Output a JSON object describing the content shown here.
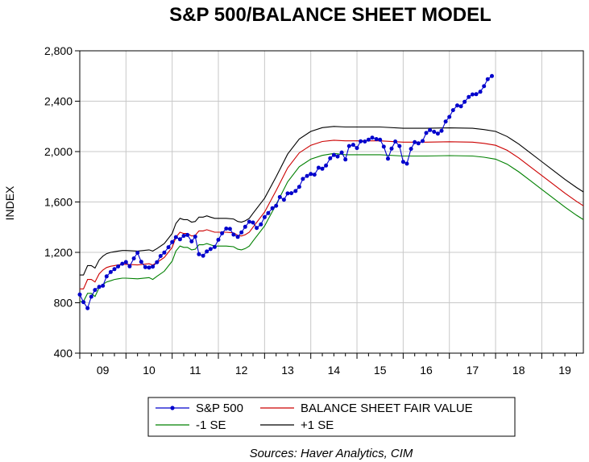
{
  "chart_data": {
    "type": "line",
    "title": "S&P 500/BALANCE SHEET MODEL",
    "ylabel": "INDEX",
    "xlabel": "",
    "source": "Sources:  Haver Analytics, CIM",
    "ylim": [
      400,
      2800
    ],
    "yticks": [
      400,
      800,
      1200,
      1600,
      2000,
      2400,
      2800
    ],
    "ytick_labels": [
      "400",
      "800",
      "1,200",
      "1,600",
      "2,000",
      "2,400",
      "2,800"
    ],
    "xlim": [
      2009.0,
      2019.9
    ],
    "xticks": [
      2009.5,
      2010.5,
      2011.5,
      2012.5,
      2013.5,
      2014.5,
      2015.5,
      2016.5,
      2017.5,
      2018.5,
      2019.5
    ],
    "xtick_labels": [
      "09",
      "10",
      "11",
      "12",
      "13",
      "14",
      "15",
      "16",
      "17",
      "18",
      "19"
    ],
    "grid": true,
    "legend_position": "bottom",
    "series": [
      {
        "name": "S&P 500",
        "color": "#0000cc",
        "markers": true,
        "x": [
          2009.0,
          2009.08,
          2009.17,
          2009.25,
          2009.33,
          2009.42,
          2009.5,
          2009.58,
          2009.67,
          2009.75,
          2009.83,
          2009.92,
          2010.0,
          2010.08,
          2010.17,
          2010.25,
          2010.33,
          2010.42,
          2010.5,
          2010.58,
          2010.67,
          2010.75,
          2010.83,
          2010.92,
          2011.0,
          2011.08,
          2011.17,
          2011.25,
          2011.33,
          2011.42,
          2011.5,
          2011.58,
          2011.67,
          2011.75,
          2011.83,
          2011.92,
          2012.0,
          2012.08,
          2012.17,
          2012.25,
          2012.33,
          2012.42,
          2012.5,
          2012.58,
          2012.67,
          2012.75,
          2012.83,
          2012.92,
          2013.0,
          2013.08,
          2013.17,
          2013.25,
          2013.33,
          2013.42,
          2013.5,
          2013.58,
          2013.67,
          2013.75,
          2013.83,
          2013.92,
          2014.0,
          2014.08,
          2014.17,
          2014.25,
          2014.33,
          2014.42,
          2014.5,
          2014.58,
          2014.67,
          2014.75,
          2014.83,
          2014.92,
          2015.0,
          2015.08,
          2015.17,
          2015.25,
          2015.33,
          2015.42,
          2015.5,
          2015.58,
          2015.67,
          2015.75,
          2015.83,
          2015.92,
          2016.0,
          2016.08,
          2016.17,
          2016.25,
          2016.33,
          2016.42,
          2016.5,
          2016.58,
          2016.67,
          2016.75,
          2016.83,
          2016.92,
          2017.0,
          2017.08,
          2017.17,
          2017.25,
          2017.33,
          2017.42,
          2017.5,
          2017.58,
          2017.67,
          2017.75,
          2017.83,
          2017.92
        ],
        "values": [
          865,
          805,
          757,
          848,
          902,
          926,
          935,
          1009,
          1044,
          1067,
          1088,
          1110,
          1123,
          1089,
          1152,
          1197,
          1125,
          1083,
          1079,
          1087,
          1122,
          1171,
          1198,
          1241,
          1282,
          1321,
          1304,
          1331,
          1338,
          1287,
          1325,
          1185,
          1173,
          1207,
          1226,
          1243,
          1300,
          1352,
          1389,
          1386,
          1341,
          1323,
          1359,
          1403,
          1443,
          1437,
          1394,
          1422,
          1480,
          1512,
          1551,
          1570,
          1639,
          1618,
          1668,
          1670,
          1687,
          1720,
          1783,
          1807,
          1822,
          1817,
          1872,
          1864,
          1889,
          1947,
          1973,
          1961,
          1993,
          1937,
          2044,
          2054,
          2028,
          2082,
          2080,
          2095,
          2111,
          2099,
          2094,
          2039,
          1944,
          2024,
          2080,
          2044,
          1919,
          1904,
          2022,
          2075,
          2065,
          2084,
          2148,
          2171,
          2157,
          2143,
          2165,
          2239,
          2275,
          2329,
          2366,
          2359,
          2395,
          2434,
          2454,
          2456,
          2475,
          2519,
          2575,
          2600
        ]
      },
      {
        "name": "BALANCE SHEET FAIR VALUE",
        "color": "#cc0000",
        "markers": false,
        "x": [
          2009.0,
          2009.08,
          2009.17,
          2009.25,
          2009.33,
          2009.42,
          2009.5,
          2009.58,
          2009.67,
          2009.75,
          2009.83,
          2009.92,
          2010.0,
          2010.25,
          2010.5,
          2010.58,
          2010.67,
          2010.83,
          2011.0,
          2011.08,
          2011.17,
          2011.25,
          2011.33,
          2011.42,
          2011.5,
          2011.58,
          2011.67,
          2011.75,
          2011.83,
          2011.92,
          2012.0,
          2012.17,
          2012.33,
          2012.42,
          2012.5,
          2012.58,
          2012.67,
          2012.75,
          2013.0,
          2013.25,
          2013.5,
          2013.75,
          2014.0,
          2014.25,
          2014.5,
          2014.75,
          2015.0,
          2015.25,
          2015.5,
          2016.0,
          2016.5,
          2017.0,
          2017.5,
          2017.75,
          2018.0,
          2018.25,
          2018.5,
          2018.75,
          2019.0,
          2019.25,
          2019.5,
          2019.75,
          2019.9
        ],
        "values": [
          910,
          910,
          985,
          985,
          965,
          1030,
          1060,
          1080,
          1090,
          1095,
          1100,
          1105,
          1105,
          1100,
          1110,
          1100,
          1120,
          1160,
          1240,
          1320,
          1360,
          1350,
          1350,
          1330,
          1335,
          1370,
          1370,
          1380,
          1370,
          1360,
          1360,
          1360,
          1355,
          1335,
          1330,
          1340,
          1360,
          1400,
          1520,
          1690,
          1870,
          1990,
          2050,
          2080,
          2090,
          2085,
          2085,
          2085,
          2085,
          2075,
          2075,
          2078,
          2075,
          2065,
          2050,
          2010,
          1950,
          1880,
          1810,
          1740,
          1670,
          1605,
          1570
        ]
      },
      {
        "name": "-1 SE",
        "color": "#008000",
        "markers": false,
        "x": [
          2009.0,
          2009.08,
          2009.17,
          2009.25,
          2009.33,
          2009.42,
          2009.5,
          2009.58,
          2009.67,
          2009.75,
          2009.83,
          2009.92,
          2010.0,
          2010.25,
          2010.5,
          2010.58,
          2010.67,
          2010.83,
          2011.0,
          2011.08,
          2011.17,
          2011.25,
          2011.33,
          2011.42,
          2011.5,
          2011.58,
          2011.67,
          2011.75,
          2011.83,
          2011.92,
          2012.0,
          2012.17,
          2012.33,
          2012.42,
          2012.5,
          2012.58,
          2012.67,
          2012.75,
          2013.0,
          2013.25,
          2013.5,
          2013.75,
          2014.0,
          2014.25,
          2014.5,
          2014.75,
          2015.0,
          2015.25,
          2015.5,
          2016.0,
          2016.5,
          2017.0,
          2017.5,
          2017.75,
          2018.0,
          2018.25,
          2018.5,
          2018.75,
          2019.0,
          2019.25,
          2019.5,
          2019.75,
          2019.9
        ],
        "values": [
          810,
          810,
          875,
          875,
          850,
          920,
          945,
          965,
          975,
          985,
          990,
          995,
          995,
          990,
          1000,
          985,
          1010,
          1050,
          1130,
          1210,
          1250,
          1240,
          1240,
          1220,
          1225,
          1260,
          1260,
          1270,
          1260,
          1250,
          1250,
          1250,
          1245,
          1225,
          1220,
          1230,
          1250,
          1290,
          1410,
          1580,
          1760,
          1880,
          1940,
          1970,
          1985,
          1975,
          1975,
          1975,
          1975,
          1965,
          1965,
          1968,
          1965,
          1955,
          1940,
          1900,
          1840,
          1770,
          1700,
          1630,
          1560,
          1495,
          1460
        ]
      },
      {
        "name": "+1 SE",
        "color": "#000000",
        "markers": false,
        "x": [
          2009.0,
          2009.08,
          2009.17,
          2009.25,
          2009.33,
          2009.42,
          2009.5,
          2009.58,
          2009.67,
          2009.75,
          2009.83,
          2009.92,
          2010.0,
          2010.25,
          2010.5,
          2010.58,
          2010.67,
          2010.83,
          2011.0,
          2011.08,
          2011.17,
          2011.25,
          2011.33,
          2011.42,
          2011.5,
          2011.58,
          2011.67,
          2011.75,
          2011.83,
          2011.92,
          2012.0,
          2012.17,
          2012.33,
          2012.42,
          2012.5,
          2012.58,
          2012.67,
          2012.75,
          2013.0,
          2013.25,
          2013.5,
          2013.75,
          2014.0,
          2014.25,
          2014.5,
          2014.75,
          2015.0,
          2015.25,
          2015.5,
          2016.0,
          2016.5,
          2017.0,
          2017.5,
          2017.75,
          2018.0,
          2018.25,
          2018.5,
          2018.75,
          2019.0,
          2019.25,
          2019.5,
          2019.75,
          2019.9
        ],
        "values": [
          1020,
          1020,
          1095,
          1095,
          1075,
          1140,
          1170,
          1190,
          1200,
          1205,
          1210,
          1215,
          1215,
          1210,
          1220,
          1210,
          1230,
          1270,
          1350,
          1430,
          1470,
          1460,
          1460,
          1440,
          1445,
          1480,
          1480,
          1490,
          1480,
          1470,
          1470,
          1470,
          1465,
          1445,
          1440,
          1450,
          1470,
          1510,
          1630,
          1800,
          1980,
          2100,
          2160,
          2190,
          2200,
          2195,
          2195,
          2195,
          2195,
          2185,
          2185,
          2188,
          2185,
          2175,
          2160,
          2120,
          2060,
          1990,
          1920,
          1850,
          1780,
          1715,
          1680
        ]
      }
    ]
  }
}
